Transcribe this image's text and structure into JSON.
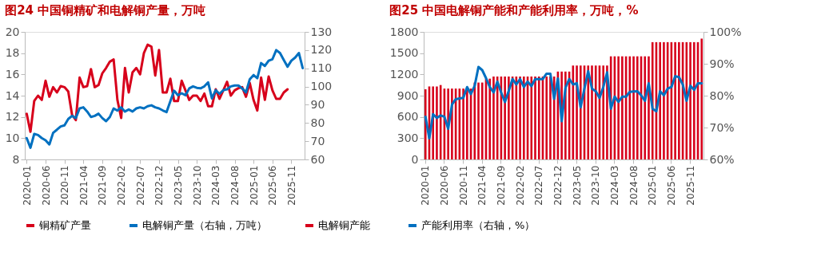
{
  "chart_data": [
    {
      "type": "line",
      "title": "图24  中国铜精矿和电解铜产量，万吨",
      "categories": [
        "2020-01",
        null,
        null,
        null,
        null,
        "2020-06",
        null,
        null,
        null,
        null,
        "2020-11",
        null,
        null,
        null,
        null,
        "2021-04",
        null,
        null,
        null,
        null,
        "2021-09",
        null,
        null,
        null,
        null,
        "2022-02",
        null,
        null,
        null,
        null,
        "2022-07",
        null,
        null,
        null,
        null,
        "2022-12",
        null,
        null,
        null,
        null,
        "2023-05",
        null,
        null,
        null,
        null,
        "2023-10",
        null,
        null,
        null,
        null,
        "2024-03",
        null,
        null,
        null,
        null,
        "2024-08",
        null,
        null,
        null,
        null,
        "2025-01",
        null,
        null,
        null,
        null,
        "2025-06",
        null,
        null,
        null,
        null,
        "2025-11",
        null,
        null,
        null
      ],
      "series": [
        {
          "name": "铜精矿产量",
          "color": "#d7001b",
          "values": [
            12.3,
            10.6,
            13.5,
            14.0,
            13.6,
            15.4,
            13.9,
            14.8,
            14.3,
            14.9,
            14.8,
            14.4,
            12.2,
            11.7,
            15.7,
            14.8,
            14.9,
            16.5,
            14.8,
            15.0,
            16.1,
            16.6,
            17.2,
            17.4,
            13.6,
            11.9,
            16.6,
            14.3,
            16.2,
            16.6,
            16.0,
            18.0,
            18.8,
            18.6,
            15.9,
            18.3,
            14.3,
            14.3,
            15.6,
            13.5,
            13.5,
            15.4,
            14.5,
            13.6,
            14.0,
            14.0,
            13.5,
            14.2,
            13.0,
            13.0,
            14.6,
            13.7,
            14.5,
            15.3,
            14.0,
            14.5,
            14.7,
            14.8,
            13.9,
            15.2,
            13.6,
            12.6,
            15.7,
            13.6,
            15.8,
            14.5,
            13.7,
            13.7,
            14.3,
            14.6,
            null,
            null,
            null,
            null
          ]
        },
        {
          "name": "电解铜产量（右轴，万吨）",
          "color": "#0070c0",
          "axis": "y2",
          "values": [
            71.7,
            66.4,
            74.0,
            73.4,
            71.7,
            70.5,
            68.2,
            74.6,
            76.3,
            78.1,
            78.7,
            82.2,
            83.9,
            82.7,
            88.0,
            88.6,
            86.3,
            83.3,
            83.9,
            85.1,
            82.7,
            81.0,
            83.3,
            88.0,
            86.8,
            88.6,
            86.3,
            87.4,
            86.3,
            88.0,
            88.6,
            88.0,
            89.2,
            89.7,
            88.6,
            88.0,
            86.9,
            86.0,
            91.9,
            97.7,
            95.2,
            96.3,
            95.2,
            99.0,
            100.1,
            99.3,
            99.0,
            100.1,
            102.3,
            93.5,
            98.0,
            96.0,
            98.0,
            98.5,
            100.1,
            100.6,
            100.6,
            99.0,
            96.8,
            104.0,
            106.3,
            104.6,
            112.9,
            111.3,
            114.2,
            115.0,
            120.0,
            118.4,
            114.6,
            110.9,
            114.2,
            115.9,
            118.4,
            110.1
          ]
        }
      ],
      "ylim": [
        8,
        20
      ],
      "yticks": [
        8,
        10,
        12,
        14,
        16,
        18,
        20
      ],
      "y2lim": [
        60,
        130
      ],
      "y2ticks": [
        60,
        70,
        80,
        90,
        100,
        110,
        120,
        130
      ],
      "grid": false,
      "legend": "bottom"
    },
    {
      "type": "bar",
      "title": "图25  中国电解铜产能和产能利用率，万吨，%",
      "categories": [
        "2020-01",
        null,
        null,
        null,
        null,
        "2020-06",
        null,
        null,
        null,
        null,
        "2020-11",
        null,
        null,
        null,
        null,
        "2021-04",
        null,
        null,
        null,
        null,
        "2021-09",
        null,
        null,
        null,
        null,
        "2022-02",
        null,
        null,
        null,
        null,
        "2022-07",
        null,
        null,
        null,
        null,
        "2022-12",
        null,
        null,
        null,
        null,
        "2023-05",
        null,
        null,
        null,
        null,
        "2023-10",
        null,
        null,
        null,
        null,
        "2024-03",
        null,
        null,
        null,
        null,
        "2024-08",
        null,
        null,
        null,
        null,
        "2025-01",
        null,
        null,
        null,
        null,
        "2025-06",
        null,
        null,
        null,
        null,
        "2025-11",
        null,
        null,
        null
      ],
      "series": [
        {
          "name": "电解铜产能",
          "color": "#d7001b",
          "type": "bar",
          "values": [
            990,
            1030,
            1030,
            1030,
            1050,
            1000,
            1000,
            1000,
            1000,
            1000,
            1000,
            1000,
            1000,
            1085,
            1085,
            1085,
            1140,
            1140,
            1170,
            1170,
            1170,
            1170,
            1170,
            1170,
            1170,
            1170,
            1170,
            1170,
            1170,
            1170,
            1170,
            1170,
            1170,
            1170,
            1170,
            1240,
            1240,
            1240,
            1240,
            1325,
            1325,
            1325,
            1325,
            1325,
            1325,
            1325,
            1325,
            1325,
            1325,
            1455,
            1455,
            1455,
            1455,
            1455,
            1455,
            1455,
            1455,
            1455,
            1455,
            1455,
            1655,
            1655,
            1655,
            1655,
            1655,
            1655,
            1655,
            1655,
            1655,
            1655,
            1655,
            1655,
            1655,
            1705
          ]
        },
        {
          "name": "产能利用率（右轴，%）",
          "color": "#0070c0",
          "type": "line",
          "axis": "y2",
          "values": [
            73.4,
            66.6,
            74.2,
            73.0,
            73.8,
            73.4,
            69.6,
            77.2,
            78.9,
            79.1,
            79.3,
            82.7,
            80.5,
            83.1,
            89.0,
            88.0,
            85.5,
            82.7,
            81.0,
            84.4,
            81.0,
            78.0,
            81.5,
            85.2,
            83.5,
            85.2,
            82.7,
            84.4,
            83.0,
            85.2,
            85.2,
            85.2,
            86.9,
            86.9,
            79.0,
            85.4,
            72.0,
            82.5,
            85.2,
            83.5,
            83.9,
            76.3,
            82.2,
            87.7,
            82.2,
            81.4,
            79.3,
            82.7,
            87.3,
            75.9,
            79.7,
            78.0,
            79.7,
            79.7,
            81.2,
            81.3,
            81.4,
            80.1,
            78.4,
            83.9,
            75.9,
            75.1,
            81.4,
            80.1,
            82.2,
            82.7,
            86.1,
            85.8,
            83.5,
            78.4,
            83.1,
            81.8,
            83.9,
            83.9
          ]
        }
      ],
      "ylim": [
        0,
        1800
      ],
      "yticks": [
        0,
        300,
        600,
        900,
        1200,
        1500,
        1800
      ],
      "y2lim": [
        60,
        100
      ],
      "y2ticks": [
        {
          "value": 60,
          "label": "60%"
        },
        {
          "value": 70,
          "label": "70%"
        },
        {
          "value": 80,
          "label": "80%"
        },
        {
          "value": 90,
          "label": "90%"
        },
        {
          "value": 100,
          "label": "100%"
        }
      ],
      "grid": false,
      "legend": "bottom"
    }
  ]
}
